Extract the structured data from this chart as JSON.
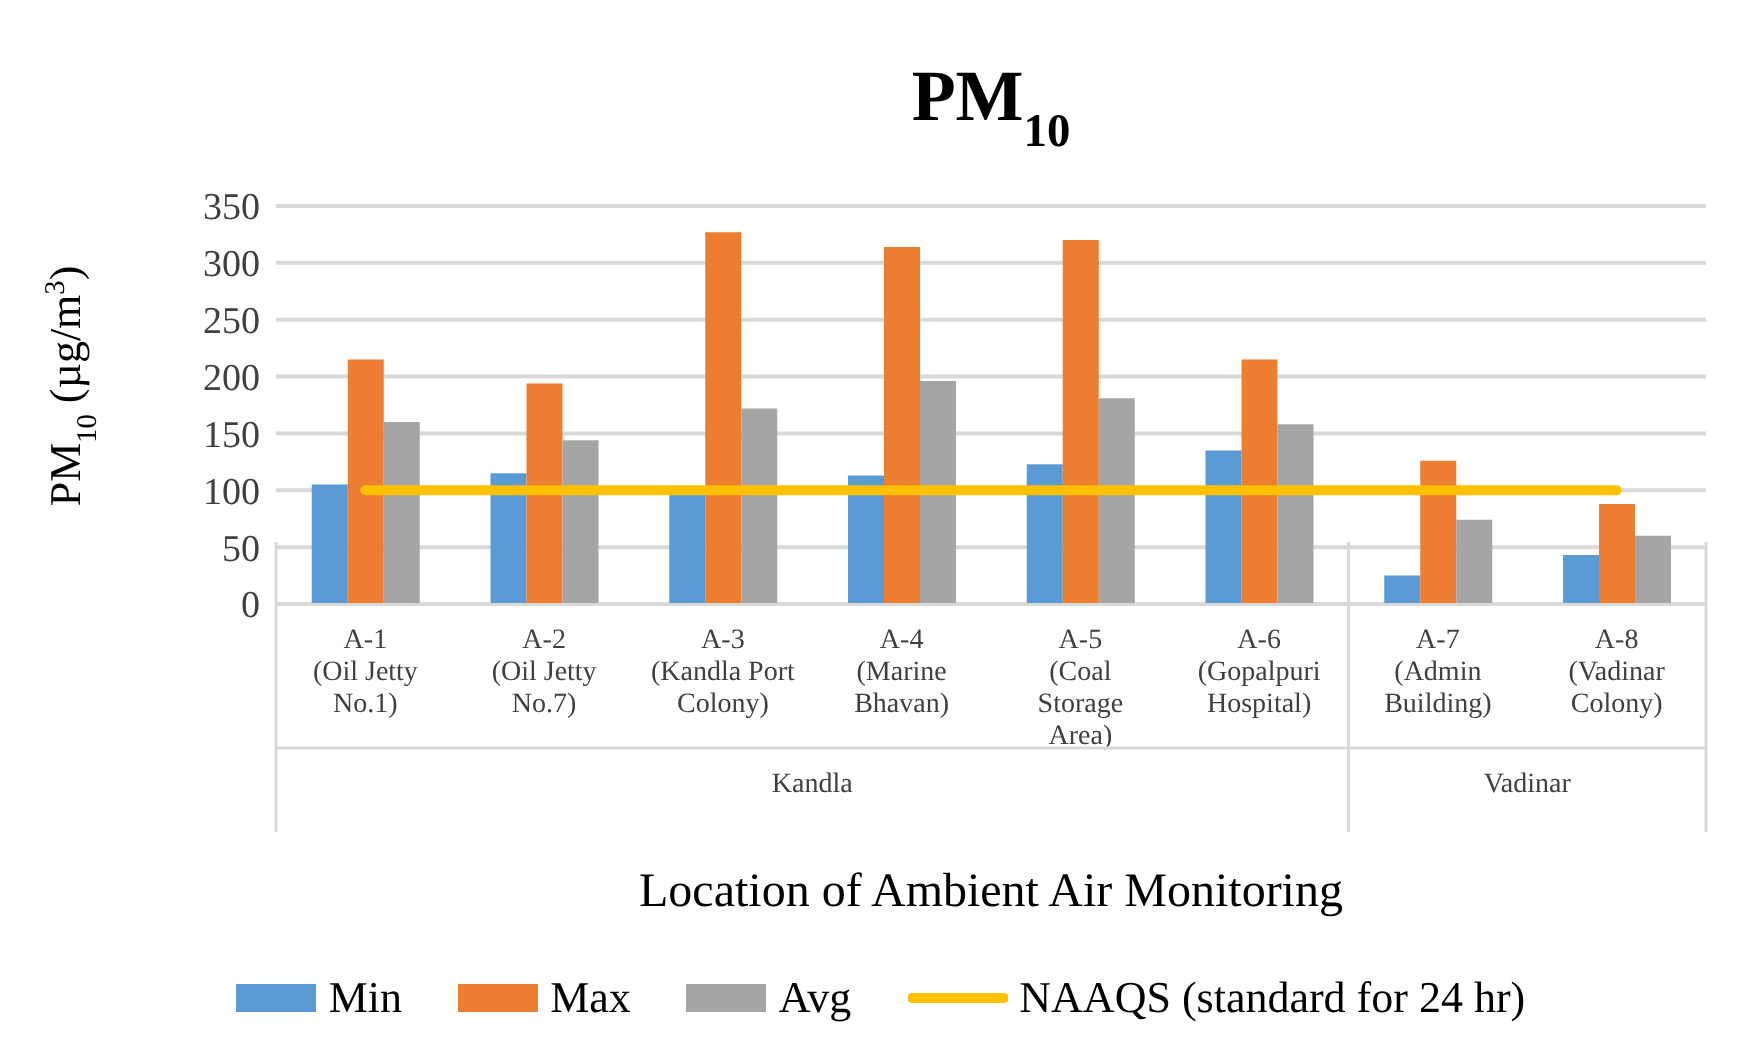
{
  "chart_data": {
    "type": "bar",
    "title": "PM$_{10}$",
    "xlabel": "Location of Ambient Air Monitoring",
    "ylabel": "PM$_{10}$ (µg/m$^{3}$)",
    "categories": [
      "A-1\n(Oil Jetty\nNo.1)",
      "A-2\n(Oil Jetty\nNo.7)",
      "A-3\n(Kandla Port\nColony)",
      "A-4\n(Marine\nBhavan)",
      "A-5\n(Coal\nStorage\nArea)",
      "A-6\n(Gopalpuri\nHospital)",
      "A-7\n(Admin\nBuilding)",
      "A-8\n(Vadinar\nColony)"
    ],
    "series": [
      {
        "name": "Min",
        "color": "#5b9bd5",
        "values": [
          105,
          115,
          99,
          113,
          123,
          135,
          25,
          43
        ]
      },
      {
        "name": "Max",
        "color": "#ed7d31",
        "values": [
          215,
          194,
          327,
          314,
          320,
          215,
          126,
          88
        ]
      },
      {
        "name": "Avg",
        "color": "#a5a5a5",
        "values": [
          160,
          144,
          172,
          196,
          181,
          158,
          74,
          60
        ]
      },
      {
        "name": "NAAQS (standard for 24 hr)",
        "type": "line",
        "color": "#ffc000",
        "values": [
          100,
          100,
          100,
          100,
          100,
          100,
          100,
          100
        ],
        "line_style": "solid",
        "marker": "none"
      }
    ],
    "annotations": [
      "Kandla",
      "Vadinar"
    ],
    "ylim": [
      0,
      350
    ],
    "yticks": [
      0,
      50,
      100,
      150,
      200,
      250,
      300,
      350
    ],
    "grid": "y",
    "legend": "bottom"
  }
}
